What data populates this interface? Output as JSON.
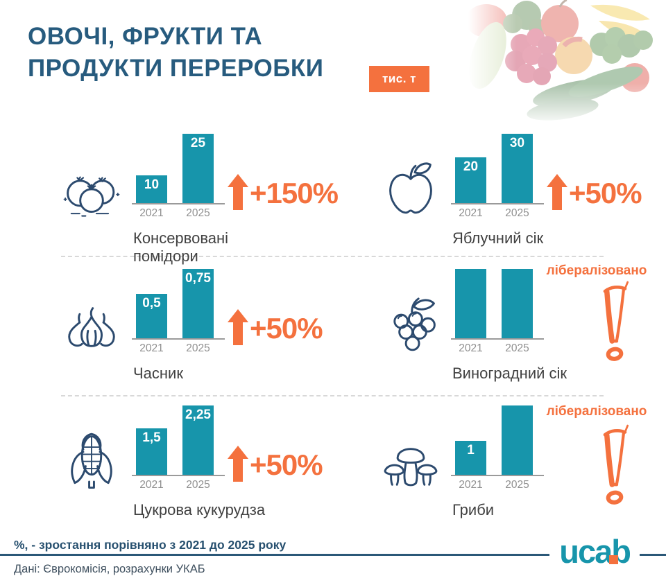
{
  "header": {
    "title_line1": "ОВОЧІ, ФРУКТИ ТА",
    "title_line2": "ПРОДУКТИ ПЕРЕРОБКИ",
    "units_badge": "тис. т"
  },
  "colors": {
    "bar_teal": "#1795ab",
    "accent_orange": "#f4713e",
    "title_navy": "#275b7e",
    "icon_navy": "#2c4a6e"
  },
  "chart_data": [
    {
      "type": "bar",
      "product": "Консервовані\nпомідори",
      "icon": "tomatoes-icon",
      "categories": [
        "2021",
        "2025"
      ],
      "values": [
        10,
        25
      ],
      "value_labels": [
        "10",
        "25"
      ],
      "bar_heights_rel": [
        0.4,
        1.0
      ],
      "growth": "+150%",
      "liberalized": false
    },
    {
      "type": "bar",
      "product": "Яблучний сік",
      "icon": "apple-icon",
      "categories": [
        "2021",
        "2025"
      ],
      "values": [
        20,
        30
      ],
      "value_labels": [
        "20",
        "30"
      ],
      "bar_heights_rel": [
        0.66,
        1.0
      ],
      "growth": "+50%",
      "liberalized": false
    },
    {
      "type": "bar",
      "product": "Часник",
      "icon": "garlic-icon",
      "categories": [
        "2021",
        "2025"
      ],
      "values": [
        0.5,
        0.75
      ],
      "value_labels": [
        "0,5",
        "0,75"
      ],
      "bar_heights_rel": [
        0.64,
        1.0
      ],
      "growth": "+50%",
      "liberalized": false
    },
    {
      "type": "bar",
      "product": "Виноградний сік",
      "icon": "grapes-icon",
      "categories": [
        "2021",
        "2025"
      ],
      "values": [
        null,
        null
      ],
      "value_labels": [
        "",
        ""
      ],
      "bar_heights_rel": [
        1.0,
        1.0
      ],
      "growth": null,
      "liberalized": true,
      "liberalized_label": "лібералізовано"
    },
    {
      "type": "bar",
      "product": "Цукрова кукурудза",
      "icon": "corn-icon",
      "categories": [
        "2021",
        "2025"
      ],
      "values": [
        1.5,
        2.25
      ],
      "value_labels": [
        "1,5",
        "2,25"
      ],
      "bar_heights_rel": [
        0.67,
        1.0
      ],
      "growth": "+50%",
      "liberalized": false
    },
    {
      "type": "bar",
      "product": "Гриби",
      "icon": "mushrooms-icon",
      "categories": [
        "2021",
        "2025"
      ],
      "values": [
        1,
        null
      ],
      "value_labels": [
        "1",
        ""
      ],
      "bar_heights_rel": [
        0.49,
        1.0
      ],
      "growth": null,
      "liberalized": true,
      "liberalized_label": "лібералізовано"
    }
  ],
  "footer": {
    "note": "%, - зростання порівняно з 2021 до 2025 року",
    "source": "Дані: Єврокомісія, розрахунки УКАБ",
    "logo": "ucab"
  }
}
